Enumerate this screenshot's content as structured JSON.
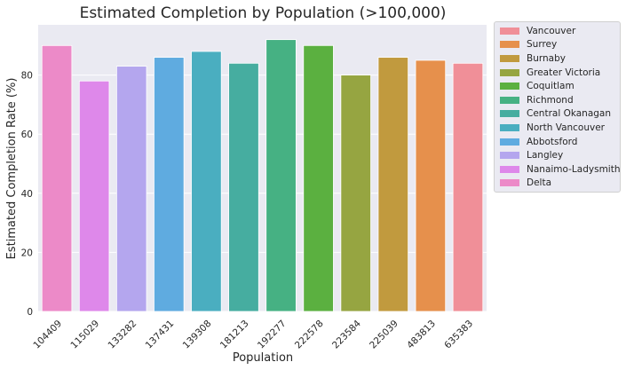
{
  "chart_data": {
    "type": "bar",
    "title": "Estimated Completion by Population (>100,000)",
    "xlabel": "Population",
    "ylabel": "Estimated Completion Rate (%)",
    "ylim": [
      0,
      97
    ],
    "yticks": [
      0,
      20,
      40,
      60,
      80
    ],
    "grid": true,
    "legend_position": "outside-right",
    "categories": [
      "104409",
      "115029",
      "133282",
      "137431",
      "139308",
      "181213",
      "192277",
      "222578",
      "223584",
      "225039",
      "483813",
      "635383"
    ],
    "values": [
      90,
      78,
      83,
      86,
      88,
      84,
      92,
      90,
      80,
      86,
      85,
      84
    ],
    "bar_labels": [
      "Delta",
      "Nanaimo-Ladysmith",
      "Langley",
      "Abbotsford",
      "North Vancouver",
      "Central Okanagan",
      "Richmond",
      "Coquitlam",
      "Greater Victoria",
      "Burnaby",
      "Surrey",
      "Vancouver"
    ],
    "legend": [
      {
        "name": "Vancouver",
        "color": "#f08f98"
      },
      {
        "name": "Surrey",
        "color": "#e6904c"
      },
      {
        "name": "Burnaby",
        "color": "#c19a3e"
      },
      {
        "name": "Greater Victoria",
        "color": "#96a541"
      },
      {
        "name": "Coquitlam",
        "color": "#5bb040"
      },
      {
        "name": "Richmond",
        "color": "#46b183"
      },
      {
        "name": "Central Okanagan",
        "color": "#46ada0"
      },
      {
        "name": "North Vancouver",
        "color": "#4aaec0"
      },
      {
        "name": "Abbotsford",
        "color": "#5fabe0"
      },
      {
        "name": "Langley",
        "color": "#b4a6ee"
      },
      {
        "name": "Nanaimo-Ladysmith",
        "color": "#de88ea"
      },
      {
        "name": "Delta",
        "color": "#ec8ac8"
      }
    ]
  }
}
